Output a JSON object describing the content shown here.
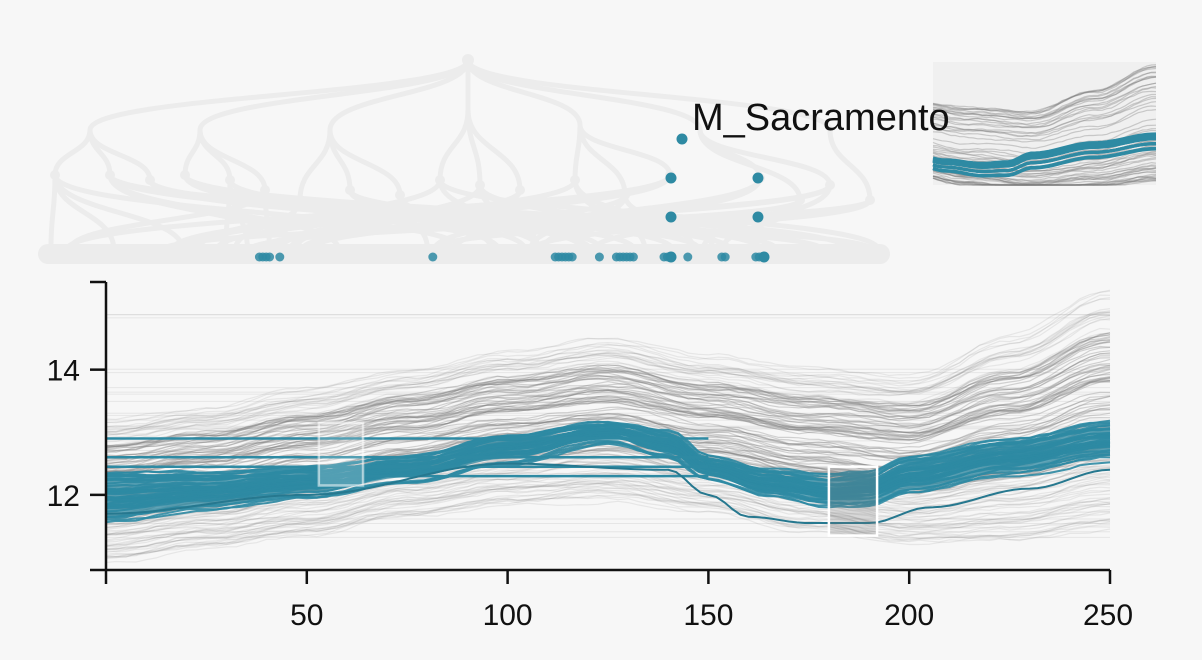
{
  "chart_data": {
    "type": "line",
    "title": "",
    "xlabel": "",
    "ylabel": "",
    "xlim": [
      0,
      250
    ],
    "ylim": [
      10.8,
      15.4
    ],
    "x_ticks": [
      50,
      100,
      150,
      200,
      250
    ],
    "y_ticks": [
      12,
      14
    ],
    "grid": false,
    "highlight_color": "#2e8aa3",
    "background_line_color": "#808080",
    "selected_node_label": "M_Sacramento",
    "highlight_series_band": {
      "x": [
        0,
        25,
        50,
        75,
        100,
        125,
        140,
        150,
        165,
        180,
        190,
        200,
        225,
        250
      ],
      "y_low": [
        11.55,
        11.75,
        11.95,
        12.2,
        12.5,
        12.85,
        12.6,
        12.25,
        11.95,
        11.8,
        11.8,
        12.0,
        12.3,
        12.55
      ],
      "y_high": [
        12.35,
        12.35,
        12.45,
        12.6,
        12.95,
        13.15,
        13.0,
        12.6,
        12.4,
        12.3,
        12.35,
        12.6,
        12.9,
        13.15
      ]
    },
    "background_series_band": {
      "x": [
        0,
        25,
        50,
        75,
        100,
        125,
        150,
        175,
        200,
        225,
        250
      ],
      "y_low": [
        11.1,
        11.3,
        11.5,
        11.8,
        12.0,
        12.1,
        11.9,
        11.6,
        11.4,
        11.5,
        11.7
      ],
      "y_high": [
        13.1,
        13.3,
        13.6,
        13.9,
        14.2,
        14.4,
        14.1,
        13.9,
        13.8,
        14.4,
        15.1
      ]
    },
    "brushes": [
      {
        "x0": 53,
        "x1": 64,
        "y0": 12.15,
        "y1": 13.15
      },
      {
        "x0": 180,
        "x1": 192,
        "y0": 11.35,
        "y1": 12.45
      }
    ]
  },
  "tree": {
    "leaf_marker_x": [
      41,
      42,
      43,
      44,
      47,
      92,
      128,
      129,
      130,
      131,
      132,
      133,
      141,
      146,
      147,
      148,
      149,
      150,
      151,
      160,
      161,
      162,
      167,
      177,
      178,
      187,
      188
    ],
    "highlighted_path_x": [
      141,
      141,
      141,
      144,
      163,
      163,
      164
    ]
  }
}
